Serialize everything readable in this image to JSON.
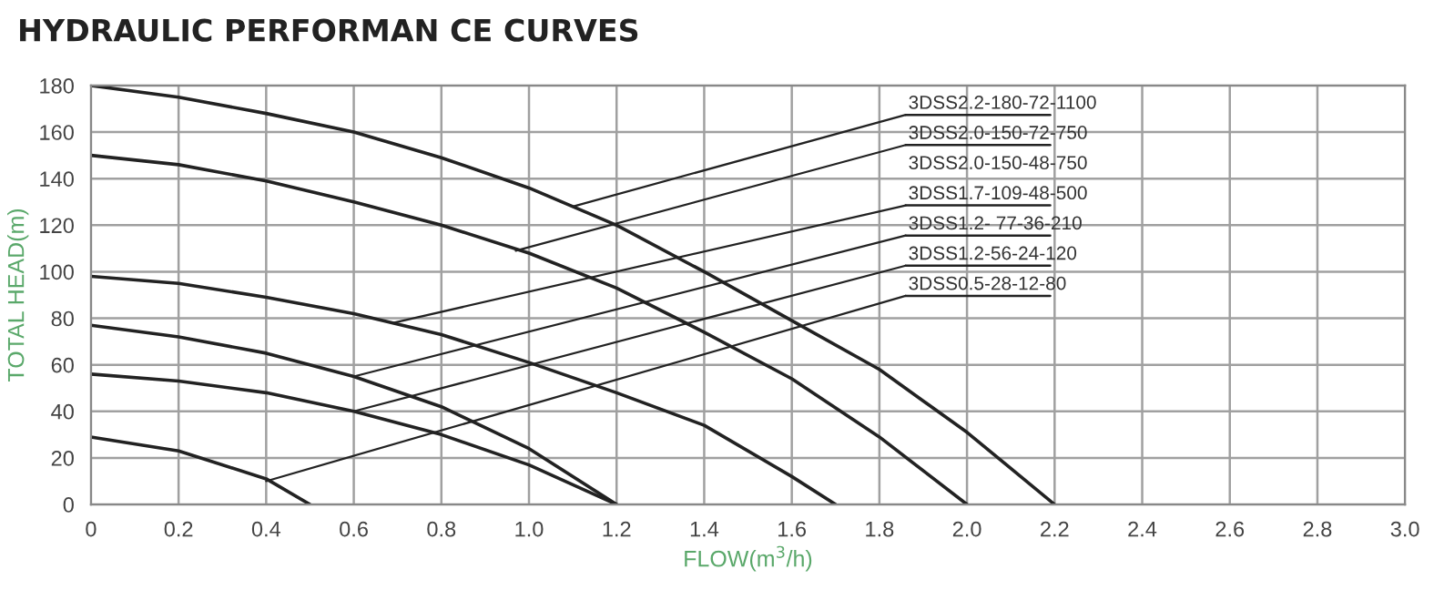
{
  "chart_data": {
    "type": "line",
    "title": "HYDRAULIC PERFORMAN CE CURVES",
    "xlabel": "FLOW(m$^{3}$/h)",
    "ylabel": "TOTAL HEAD(m)",
    "xlim": [
      0,
      3.0
    ],
    "ylim": [
      0,
      180
    ],
    "xticks": [
      0,
      0.2,
      0.4,
      0.6,
      0.8,
      {
        "value": 1,
        "label": "1.0"
      },
      1.2,
      1.4,
      1.6,
      1.8,
      {
        "value": 2,
        "label": "2.0"
      },
      2.2,
      2.4,
      2.6,
      2.8,
      {
        "value": 3,
        "label": "3.0"
      }
    ],
    "yticks": [
      0,
      20,
      40,
      60,
      80,
      100,
      120,
      140,
      160,
      180
    ],
    "grid": true,
    "legend": false,
    "marker": "none",
    "line_style": "solid",
    "series": [
      {
        "color": "#222222",
        "x": [
          0,
          0.2,
          0.4,
          0.6,
          0.8,
          1.0,
          1.2,
          1.4,
          1.6,
          1.8,
          2.0,
          2.2
        ],
        "values": [
          180,
          175,
          168,
          160,
          149,
          136,
          120,
          100,
          79,
          58,
          31,
          0
        ]
      },
      {
        "color": "#222222",
        "x": [
          0,
          0.2,
          0.4,
          0.6,
          0.8,
          1.0,
          1.2,
          1.4,
          1.6,
          1.8,
          2.0
        ],
        "values": [
          150,
          146,
          139,
          130,
          120,
          108,
          93,
          74,
          54,
          29,
          0
        ]
      },
      {
        "color": "#222222",
        "x": [
          0,
          0.2,
          0.4,
          0.6,
          0.8,
          1.0,
          1.2,
          1.4,
          1.6,
          1.7
        ],
        "values": [
          98,
          95,
          89,
          82,
          73,
          61,
          48,
          34,
          12,
          0
        ]
      },
      {
        "color": "#222222",
        "x": [
          0,
          0.2,
          0.4,
          0.6,
          0.8,
          1.0,
          1.2
        ],
        "values": [
          77,
          72,
          65,
          55,
          42,
          24,
          0
        ]
      },
      {
        "color": "#222222",
        "x": [
          0,
          0.2,
          0.4,
          0.6,
          0.8,
          1.0,
          1.2
        ],
        "values": [
          56,
          53,
          48,
          40,
          30,
          17,
          0
        ]
      },
      {
        "color": "#222222",
        "x": [
          0,
          0.2,
          0.4,
          0.5
        ],
        "values": [
          29,
          23,
          11,
          0
        ]
      }
    ],
    "annotations": [
      {
        "text": "3DSS2.2-180-72-1100",
        "x": 1.1,
        "y": 128
      },
      {
        "text": "3DSS2.0-150-72-750",
        "x": 0.97,
        "y": 109
      },
      "3DSS2.0-150-48-750",
      {
        "text": "3DSS1.7-109-48-500",
        "x": 0.69,
        "y": 78
      },
      {
        "text": "3DSS1.2- 77-36-210",
        "x": 0.6,
        "y": 55
      },
      {
        "text": "3DSS1.2-56-24-120",
        "x": 0.6,
        "y": 40
      },
      {
        "text": "3DSS0.5-28-12-80",
        "x": 0.4,
        "y": 10
      }
    ]
  }
}
